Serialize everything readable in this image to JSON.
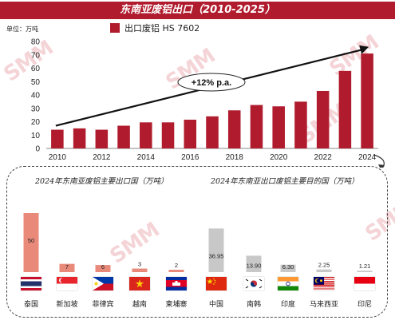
{
  "title": "东南亚废铝出口（2010-2025）",
  "unit_label": "单位：万吨",
  "legend_label": "出口废铝 HS 7602",
  "growth_label": "+12% p.a.",
  "bottom_left_title": "2024年东南亚废铝主要出口国（万吨）",
  "bottom_right_title": "2024年东南亚出口废铝主要目的国（万吨）",
  "watermark": "SMM",
  "colors": {
    "main_bar": "#b01c2e",
    "exporter_bar": "#e8897a",
    "destination_bar": "#c8c8c8"
  },
  "chart_data": [
    {
      "type": "bar",
      "title": "东南亚废铝出口（2010-2025）",
      "ylabel": "万吨",
      "series": [
        {
          "name": "出口废铝 HS 7602",
          "values": [
            14,
            15,
            14,
            17,
            19.5,
            19.5,
            21.5,
            24,
            28.5,
            32.5,
            31.5,
            35,
            43,
            58,
            71
          ]
        }
      ],
      "x": [
        2010,
        2011,
        2012,
        2013,
        2014,
        2015,
        2016,
        2017,
        2018,
        2019,
        2020,
        2021,
        2022,
        2023,
        2024
      ],
      "x_tick_labels": [
        "2010",
        "2012",
        "2014",
        "2016",
        "2018",
        "2020",
        "2022",
        "2024"
      ],
      "y_tick_labels": [
        "0",
        "10",
        "20",
        "30",
        "40",
        "50",
        "60",
        "70",
        "80"
      ],
      "ylim": [
        0,
        80
      ],
      "annotation": "+12% p.a."
    },
    {
      "type": "bar",
      "title": "2024年东南亚废铝主要出口国（万吨）",
      "categories": [
        "泰国",
        "新加坡",
        "菲律宾",
        "越南",
        "柬埔寨"
      ],
      "values": [
        50,
        7,
        6,
        3,
        2
      ],
      "value_labels": [
        "50",
        "7",
        "6",
        "3",
        "2"
      ]
    },
    {
      "type": "bar",
      "title": "2024年东南亚出口废铝主要目的国（万吨）",
      "categories": [
        "中国",
        "南韩",
        "印度",
        "马来西亚",
        "印尼"
      ],
      "values": [
        36.95,
        13.9,
        6.3,
        2.25,
        1.21
      ],
      "value_labels": [
        "36.95",
        "13.90",
        "6.30",
        "2.25",
        "1.21"
      ]
    }
  ]
}
